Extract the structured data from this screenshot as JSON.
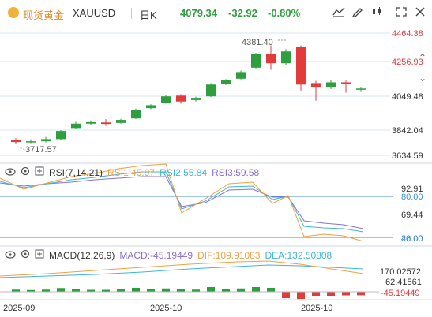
{
  "header": {
    "title": "现货黄金",
    "symbol": "XAUUSD",
    "timeframe": "日K",
    "price": "4079.34",
    "change": "-32.92",
    "change_pct": "-0.80%"
  },
  "colors": {
    "up": "#2e9e3e",
    "down": "#e23b3b",
    "accent": "#e08a2a",
    "grid": "#d9e6ef"
  },
  "main_axis": {
    "labels": [
      "4464.38",
      "4256.93",
      "4049.48",
      "3842.04",
      "3634.59"
    ]
  },
  "annotations": {
    "high": "4381.40",
    "low": "3717.57"
  },
  "rsi": {
    "label": "RSI(7,14,21)",
    "rsi1": "RSI1:45.97",
    "rsi2": "RSI2:55.84",
    "rsi3": "RSI3:59.58",
    "axis": [
      "92.91",
      "80.00",
      "69.44",
      "46.00",
      "20.00"
    ]
  },
  "macd": {
    "label": "MACD(12,26,9)",
    "macd": "MACD:-45.19449",
    "dif": "DIF:109.91083",
    "dea": "DEA:132.50808",
    "axis": [
      "170.02572",
      "62.41561",
      "-45.19449"
    ]
  },
  "x_axis": {
    "labels": [
      "2025-09",
      "2025-10",
      "2025-10"
    ]
  },
  "chart_data": {
    "type": "candlestick",
    "series_candles": [
      {
        "o": 3740,
        "c": 3725,
        "h": 3752,
        "l": 3712
      },
      {
        "o": 3725,
        "c": 3730,
        "h": 3744,
        "l": 3717
      },
      {
        "o": 3730,
        "c": 3745,
        "h": 3760,
        "l": 3722
      },
      {
        "o": 3745,
        "c": 3800,
        "h": 3806,
        "l": 3740
      },
      {
        "o": 3820,
        "c": 3850,
        "h": 3862,
        "l": 3812
      },
      {
        "o": 3850,
        "c": 3860,
        "h": 3872,
        "l": 3842
      },
      {
        "o": 3858,
        "c": 3848,
        "h": 3880,
        "l": 3835
      },
      {
        "o": 3855,
        "c": 3875,
        "h": 3882,
        "l": 3850
      },
      {
        "o": 3885,
        "c": 3945,
        "h": 3952,
        "l": 3880
      },
      {
        "o": 3955,
        "c": 3975,
        "h": 3982,
        "l": 3948
      },
      {
        "o": 3990,
        "c": 4035,
        "h": 4045,
        "l": 3985
      },
      {
        "o": 4040,
        "c": 4000,
        "h": 4050,
        "l": 3985
      },
      {
        "o": 4010,
        "c": 4025,
        "h": 4032,
        "l": 4000
      },
      {
        "o": 4035,
        "c": 4115,
        "h": 4125,
        "l": 4030
      },
      {
        "o": 4120,
        "c": 4145,
        "h": 4152,
        "l": 4112
      },
      {
        "o": 4155,
        "c": 4200,
        "h": 4210,
        "l": 4150
      },
      {
        "o": 4230,
        "c": 4320,
        "h": 4330,
        "l": 4225
      },
      {
        "o": 4320,
        "c": 4260,
        "h": 4381,
        "l": 4215
      },
      {
        "o": 4260,
        "c": 4340,
        "h": 4355,
        "l": 4250
      },
      {
        "o": 4370,
        "c": 4115,
        "h": 4381,
        "l": 4075
      },
      {
        "o": 4125,
        "c": 4100,
        "h": 4140,
        "l": 4005
      },
      {
        "o": 4100,
        "c": 4130,
        "h": 4145,
        "l": 4085
      },
      {
        "o": 4130,
        "c": 4120,
        "h": 4142,
        "l": 4060
      },
      {
        "o": 4080,
        "c": 4088,
        "h": 4100,
        "l": 4065
      }
    ],
    "y_range": [
      3634.59,
      4464.38
    ]
  }
}
